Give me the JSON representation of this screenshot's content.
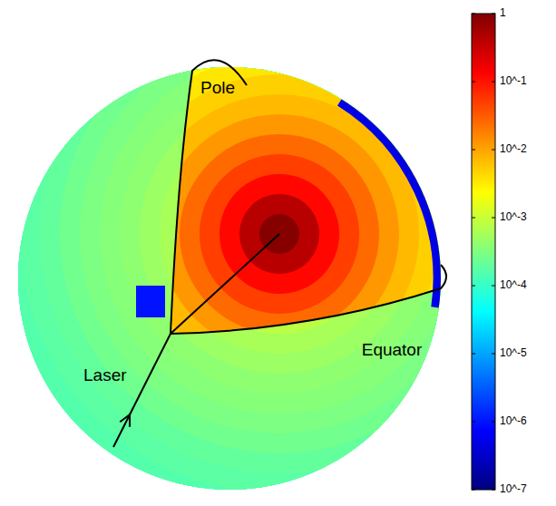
{
  "chart_data": {
    "type": "sphere_heatmap",
    "labels": {
      "pole": "Pole",
      "equator": "Equator",
      "laser": "Laser"
    },
    "log": true,
    "rings_lit": [
      0.9,
      0.4,
      0.12,
      0.05,
      0.025,
      0.012,
      0.007,
      0.005,
      0.0035,
      0.0025,
      0.002,
      0.0016,
      0.0013,
      0.0011,
      0.001,
      0.0009,
      0.0008,
      0.0007
    ],
    "rings_shadow": [
      0.002,
      0.0015,
      0.0012,
      0.001,
      0.0008,
      0.0006,
      0.0005,
      0.0004,
      0.00035,
      0.0003,
      0.00025,
      0.0002,
      0.00018,
      0.00016,
      0.00014,
      0.00012,
      0.0001,
      9e-05
    ],
    "entry_patch": 1e-06,
    "rim_band": 5e-07,
    "colorbar": {
      "range": [
        1e-07,
        1
      ],
      "ticks": [
        {
          "value": 1e-07,
          "label": "10^-7"
        },
        {
          "value": 1e-06,
          "label": "10^-6"
        },
        {
          "value": 1e-05,
          "label": "10^-5"
        },
        {
          "value": 0.0001,
          "label": "10^-4"
        },
        {
          "value": 0.001,
          "label": "10^-3"
        },
        {
          "value": 0.01,
          "label": "10^-2"
        },
        {
          "value": 0.1,
          "label": "10^-1"
        },
        1
      ]
    }
  }
}
